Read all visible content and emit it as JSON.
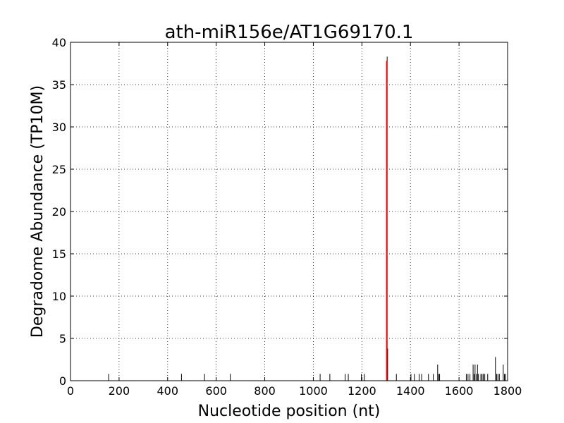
{
  "chart_data": {
    "type": "bar",
    "title": "ath-miR156e/AT1G69170.1",
    "xlabel": "Nucleotide position (nt)",
    "ylabel": "Degradome Abundance (TP10M)",
    "xlim": [
      0,
      1800
    ],
    "ylim": [
      0,
      40
    ],
    "xticks": [
      "0",
      "200",
      "400",
      "600",
      "800",
      "1000",
      "1200",
      "1400",
      "1600",
      "1800"
    ],
    "yticks": [
      "0",
      "5",
      "10",
      "15",
      "20",
      "25",
      "30",
      "35",
      "40"
    ],
    "grid": true,
    "colors": {
      "background": "#9e9e9e",
      "target": "#ff0000"
    },
    "series": [
      {
        "x": [
          157,
          457,
          552,
          658,
          1028,
          1068,
          1131,
          1144,
          1198,
          1210,
          1304,
          1306,
          1342,
          1402,
          1416,
          1436,
          1446,
          1474,
          1494,
          1512,
          1516,
          1520,
          1630,
          1637,
          1645,
          1658,
          1662,
          1666,
          1672,
          1676,
          1680,
          1690,
          1695,
          1700,
          1706,
          1718,
          1750,
          1755,
          1760,
          1766,
          1782,
          1787,
          1792
        ],
        "values": [
          0.8,
          0.8,
          0.8,
          0.8,
          0.8,
          0.8,
          0.8,
          0.8,
          0.8,
          0.8,
          38.3,
          3.8,
          0.8,
          0.8,
          0.8,
          0.8,
          0.8,
          0.8,
          0.8,
          1.9,
          0.8,
          0.8,
          0.8,
          0.8,
          0.8,
          1.9,
          0.8,
          1.9,
          0.8,
          1.9,
          0.8,
          0.8,
          0.8,
          0.8,
          0.8,
          0.8,
          2.8,
          0.8,
          0.8,
          0.8,
          1.9,
          0.8,
          0.8
        ]
      },
      {
        "x": [
          1304
        ],
        "values": [
          37.8
        ]
      }
    ]
  }
}
